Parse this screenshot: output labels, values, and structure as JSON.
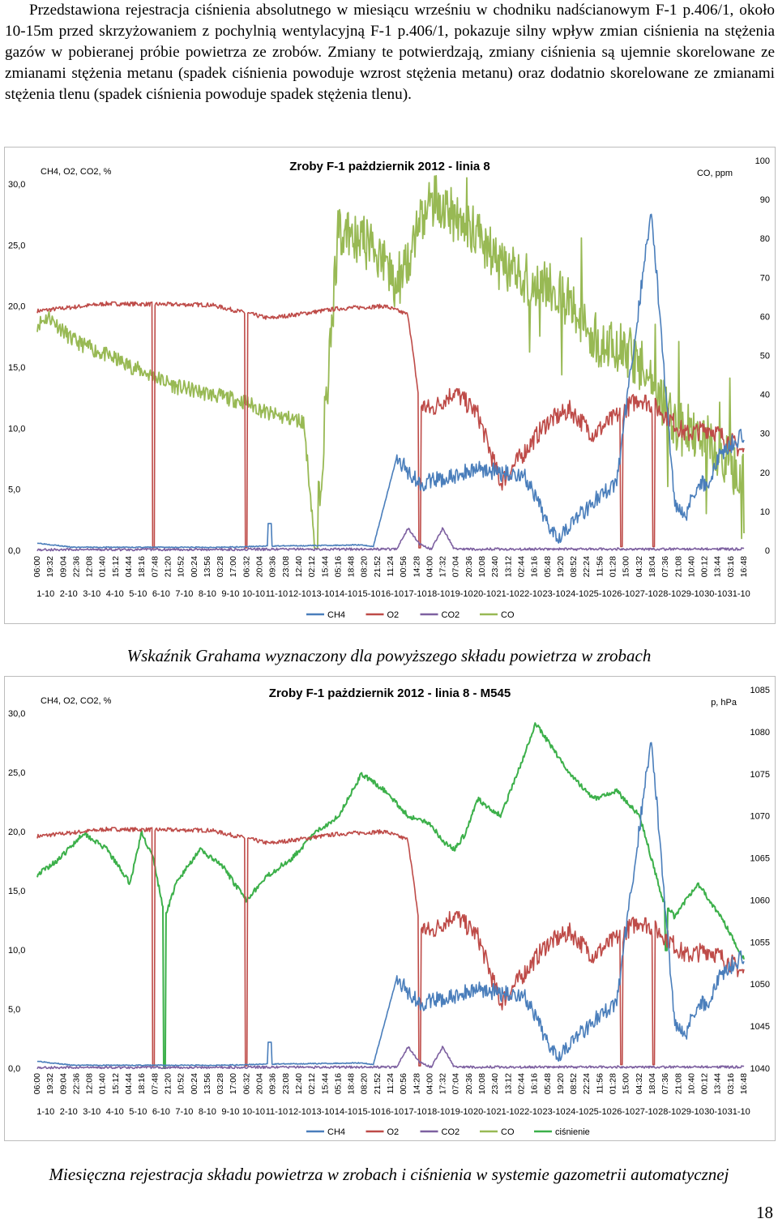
{
  "text": {
    "paragraph": [
      "Przedstawiona rejestracja ciśnienia absolutnego w miesiącu wrześniu w chodniku  nadścianowym F-1 p.406/1, około 10-15m przed skrzyżowaniem z pochylnią wentylacyjną F-1 p.406/1, pokazuje silny wpływ zmian ciśnienia na stężenia gazów w pobieranej próbie powietrza ze zrobów. Zmiany te potwierdzają, zmiany ciśnienia są ujemnie skorelowane ze zmianami stężenia metanu (spadek ciśnienia powoduje wzrost stężenia metanu) oraz dodatnio skorelowane ze zmianami stężenia tlenu (spadek ciśnienia powoduje spadek stężenia tlenu)."
    ],
    "caption1": "Wskaźnik Grahama wyznaczony dla powyższego składu powietrza w zrobach",
    "caption2": "Miesięczna rejestracja składu powietrza w zrobach i ciśnienia w systemie gazometrii automatycznej",
    "page_number": "18"
  },
  "chart_data": [
    {
      "type": "line",
      "title": "Zroby F-1 pażdziernik 2012 - linia 8",
      "left_axis_title": "CH4, O2, CO2, %",
      "right_axis_title": "CO, ppm",
      "y_left": {
        "min": 0,
        "max": 30,
        "ticks": [
          "0,0",
          "5,0",
          "10,0",
          "15,0",
          "20,0",
          "25,0",
          "30,0"
        ]
      },
      "y_right": {
        "min": 0,
        "max": 100,
        "ticks": [
          "0",
          "10",
          "20",
          "30",
          "40",
          "50",
          "60",
          "70",
          "80",
          "90",
          "100"
        ]
      },
      "time_labels": [
        "06:00",
        "19:32",
        "09:04",
        "22:36",
        "12:08",
        "01:40",
        "15:12",
        "04:44",
        "18:16",
        "07:48",
        "21:20",
        "10:52",
        "00:24",
        "13:56",
        "03:28",
        "17:00",
        "06:32",
        "20:04",
        "09:36",
        "23:08",
        "12:40",
        "02:12",
        "15:44",
        "05:16",
        "18:48",
        "08:20",
        "21:52",
        "11:24",
        "00:56",
        "14:28",
        "04:00",
        "17:32",
        "07:04",
        "20:36",
        "10:08",
        "23:40",
        "13:12",
        "02:44",
        "16:16",
        "05:48",
        "19:20",
        "08:52",
        "22:24",
        "11:56",
        "01:28",
        "15:00",
        "04:32",
        "18:04",
        "07:36",
        "21:08",
        "10:40",
        "00:12",
        "13:44",
        "03:16",
        "16:48"
      ],
      "date_labels": [
        "1-10",
        "2-10",
        "3-10",
        "4-10",
        "5-10",
        "6-10",
        "7-10",
        "8-10",
        "9-10",
        "10-10",
        "11-10",
        "12-10",
        "13-10",
        "14-10",
        "15-10",
        "16-10",
        "17-10",
        "18-10",
        "19-10",
        "20-10",
        "21-10",
        "22-10",
        "23-10",
        "24-10",
        "25-10",
        "26-10",
        "27-10",
        "28-10",
        "29-10",
        "30-10",
        "31-10"
      ],
      "legend": [
        "CH4",
        "O2",
        "CO2",
        "CO"
      ],
      "colors": {
        "CH4": "#4a7ebb",
        "O2": "#be4b48",
        "CO2": "#7d60a0",
        "CO": "#98b954"
      },
      "series_keypoints": {
        "O2": [
          [
            0,
            19.6
          ],
          [
            6,
            20.2
          ],
          [
            15,
            20.1
          ],
          [
            20,
            19.0
          ],
          [
            26,
            19.8
          ],
          [
            30,
            20.0
          ],
          [
            32,
            19.3
          ],
          [
            33,
            12.0
          ],
          [
            34,
            11.5
          ],
          [
            36,
            13.0
          ],
          [
            38,
            11.2
          ],
          [
            40,
            5.5
          ],
          [
            42,
            8.0
          ],
          [
            44,
            10.5
          ],
          [
            46,
            11.5
          ],
          [
            48,
            9.5
          ],
          [
            50,
            11.0
          ],
          [
            52,
            12.5
          ],
          [
            54,
            11.3
          ],
          [
            56,
            9.5
          ],
          [
            58,
            10.0
          ],
          [
            60,
            8.8
          ],
          [
            61,
            8.0
          ]
        ],
        "CH4": [
          [
            0,
            0.6
          ],
          [
            3,
            0.25
          ],
          [
            16,
            0.25
          ],
          [
            18,
            0.3
          ],
          [
            20,
            0.35
          ],
          [
            25,
            0.4
          ],
          [
            28,
            0.45
          ],
          [
            29,
            0.3
          ],
          [
            31,
            7.5
          ],
          [
            33,
            5.5
          ],
          [
            36,
            6.0
          ],
          [
            38,
            6.8
          ],
          [
            40,
            6.3
          ],
          [
            42,
            6.2
          ],
          [
            44,
            2.3
          ],
          [
            45,
            1.2
          ],
          [
            48,
            4.0
          ],
          [
            50,
            5.5
          ],
          [
            53,
            28.0
          ],
          [
            55,
            4.0
          ],
          [
            56,
            3.0
          ],
          [
            57,
            5.5
          ],
          [
            58,
            5.5
          ],
          [
            59,
            8.0
          ],
          [
            61,
            9.5
          ]
        ],
        "CO2": [
          [
            0,
            0.05
          ],
          [
            31,
            0.1
          ],
          [
            32,
            1.8
          ],
          [
            33,
            0.5
          ],
          [
            34,
            0.1
          ],
          [
            35,
            1.8
          ],
          [
            36,
            0.1
          ],
          [
            61,
            0.1
          ]
        ],
        "CO": [
          [
            0,
            58
          ],
          [
            1,
            60
          ],
          [
            3,
            54
          ],
          [
            6,
            50
          ],
          [
            12,
            42
          ],
          [
            18,
            38
          ],
          [
            20,
            35
          ],
          [
            23,
            33
          ],
          [
            24,
            0.5
          ],
          [
            26,
            82
          ],
          [
            29,
            78
          ],
          [
            31,
            68
          ],
          [
            34,
            90
          ],
          [
            36,
            86
          ],
          [
            38,
            82
          ],
          [
            40,
            72
          ],
          [
            44,
            68
          ],
          [
            46,
            64
          ],
          [
            47,
            59
          ],
          [
            49,
            52
          ],
          [
            51,
            51
          ],
          [
            54,
            38
          ],
          [
            55,
            32
          ],
          [
            58,
            28
          ],
          [
            61,
            18
          ]
        ]
      }
    },
    {
      "type": "line",
      "title": "Zroby F-1 pażdziernik 2012 - linia 8 - M545",
      "left_axis_title": "CH4, O2, CO2, %",
      "right_axis_title": "p, hPa",
      "y_left": {
        "min": 0,
        "max": 30,
        "ticks": [
          "0,0",
          "5,0",
          "10,0",
          "15,0",
          "20,0",
          "25,0",
          "30,0"
        ]
      },
      "y_right": {
        "min": 1040,
        "max": 1085,
        "ticks": [
          "1040",
          "1045",
          "1050",
          "1055",
          "1060",
          "1065",
          "1070",
          "1075",
          "1080",
          "1085"
        ]
      },
      "time_labels": [
        "06:00",
        "19:32",
        "09:04",
        "22:36",
        "12:08",
        "01:40",
        "15:12",
        "04:44",
        "18:16",
        "07:48",
        "21:20",
        "10:52",
        "00:24",
        "13:56",
        "03:28",
        "17:00",
        "06:32",
        "20:04",
        "09:36",
        "23:08",
        "12:40",
        "02:12",
        "15:44",
        "05:16",
        "18:48",
        "08:20",
        "21:52",
        "11:24",
        "00:56",
        "14:28",
        "04:00",
        "17:32",
        "07:04",
        "20:36",
        "10:08",
        "23:40",
        "13:12",
        "02:44",
        "16:16",
        "05:48",
        "19:20",
        "08:52",
        "22:24",
        "11:56",
        "01:28",
        "15:00",
        "04:32",
        "18:04",
        "07:36",
        "21:08",
        "10:40",
        "00:12",
        "13:44",
        "03:16",
        "16:48"
      ],
      "date_labels": [
        "1-10",
        "2-10",
        "3-10",
        "4-10",
        "5-10",
        "6-10",
        "7-10",
        "8-10",
        "9-10",
        "10-10",
        "11-10",
        "12-10",
        "13-10",
        "14-10",
        "15-10",
        "16-10",
        "17-10",
        "18-10",
        "19-10",
        "20-10",
        "21-10",
        "22-10",
        "23-10",
        "24-10",
        "25-10",
        "26-10",
        "27-10",
        "28-10",
        "29-10",
        "30-10",
        "31-10"
      ],
      "legend": [
        "CH4",
        "O2",
        "CO2",
        "CO",
        "ciśnienie"
      ],
      "colors": {
        "CH4": "#4a7ebb",
        "O2": "#be4b48",
        "CO2": "#7d60a0",
        "CO": "#98b954",
        "ciśnienie": "#3cb04a"
      },
      "series_keypoints": {
        "O2": [
          [
            0,
            19.6
          ],
          [
            6,
            20.2
          ],
          [
            15,
            20.1
          ],
          [
            20,
            19.0
          ],
          [
            26,
            19.8
          ],
          [
            30,
            20.0
          ],
          [
            32,
            19.3
          ],
          [
            33,
            12.0
          ],
          [
            34,
            11.5
          ],
          [
            36,
            13.0
          ],
          [
            38,
            11.2
          ],
          [
            40,
            5.5
          ],
          [
            42,
            8.0
          ],
          [
            44,
            10.5
          ],
          [
            46,
            11.5
          ],
          [
            48,
            9.5
          ],
          [
            50,
            11.0
          ],
          [
            52,
            12.5
          ],
          [
            54,
            11.3
          ],
          [
            56,
            9.5
          ],
          [
            58,
            10.0
          ],
          [
            60,
            8.8
          ],
          [
            61,
            8.0
          ]
        ],
        "CH4": [
          [
            0,
            0.6
          ],
          [
            3,
            0.25
          ],
          [
            16,
            0.25
          ],
          [
            18,
            0.3
          ],
          [
            20,
            0.35
          ],
          [
            25,
            0.4
          ],
          [
            28,
            0.45
          ],
          [
            29,
            0.3
          ],
          [
            31,
            7.5
          ],
          [
            33,
            5.5
          ],
          [
            36,
            6.0
          ],
          [
            38,
            6.8
          ],
          [
            40,
            6.3
          ],
          [
            42,
            6.2
          ],
          [
            44,
            2.3
          ],
          [
            45,
            1.2
          ],
          [
            48,
            4.0
          ],
          [
            50,
            5.5
          ],
          [
            53,
            28.0
          ],
          [
            55,
            4.0
          ],
          [
            56,
            3.0
          ],
          [
            57,
            5.5
          ],
          [
            58,
            5.5
          ],
          [
            59,
            8.0
          ],
          [
            61,
            9.5
          ]
        ],
        "CO2": [
          [
            0,
            0.05
          ],
          [
            31,
            0.1
          ],
          [
            32,
            1.8
          ],
          [
            33,
            0.5
          ],
          [
            34,
            0.1
          ],
          [
            35,
            1.8
          ],
          [
            36,
            0.1
          ],
          [
            61,
            0.1
          ]
        ],
        "ciśnienie": [
          [
            0,
            1063
          ],
          [
            2,
            1065
          ],
          [
            4,
            1068
          ],
          [
            6,
            1066
          ],
          [
            8,
            1062
          ],
          [
            9,
            1068
          ],
          [
            10,
            1065
          ],
          [
            11,
            1058
          ],
          [
            12,
            1062
          ],
          [
            14,
            1066
          ],
          [
            16,
            1064
          ],
          [
            18,
            1060
          ],
          [
            20,
            1063
          ],
          [
            22,
            1065
          ],
          [
            24,
            1068
          ],
          [
            26,
            1070
          ],
          [
            28,
            1075
          ],
          [
            30,
            1073
          ],
          [
            32,
            1070
          ],
          [
            34,
            1069
          ],
          [
            35,
            1067
          ],
          [
            36,
            1066
          ],
          [
            37,
            1068
          ],
          [
            38,
            1072
          ],
          [
            40,
            1070
          ],
          [
            42,
            1077
          ],
          [
            43,
            1081
          ],
          [
            44,
            1079
          ],
          [
            46,
            1075
          ],
          [
            48,
            1072
          ],
          [
            50,
            1073
          ],
          [
            52,
            1070
          ],
          [
            54,
            1060
          ],
          [
            55,
            1058
          ],
          [
            57,
            1062
          ],
          [
            59,
            1058
          ],
          [
            61,
            1053
          ]
        ]
      }
    }
  ]
}
